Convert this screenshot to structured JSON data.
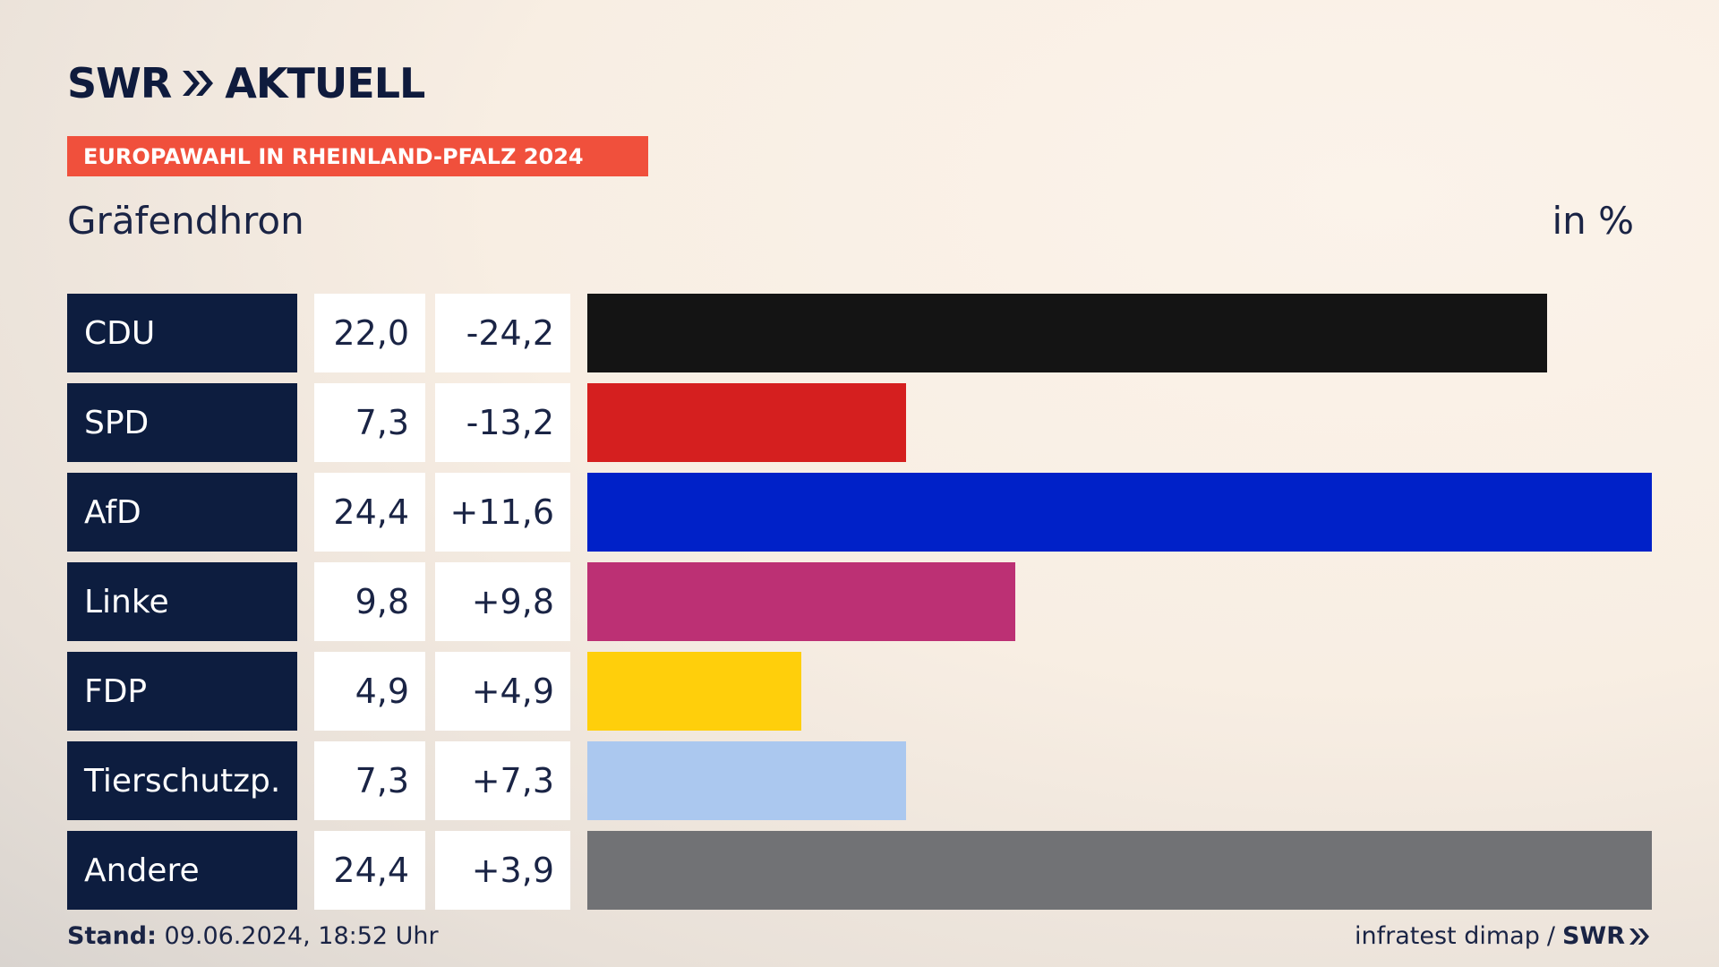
{
  "brand": {
    "logo_text_left": "SWR",
    "logo_text_right": "AKTUELL"
  },
  "tag": "EUROPAWAHL IN RHEINLAND-PFALZ 2024",
  "region": "Gräfendhron",
  "unit": "in %",
  "chart_data": {
    "type": "bar",
    "orientation": "horizontal",
    "title": "Gräfendhron",
    "unit": "in %",
    "xlim": [
      0,
      24.4
    ],
    "categories": [
      "CDU",
      "SPD",
      "AfD",
      "Linke",
      "FDP",
      "Tierschutzp.",
      "Andere"
    ],
    "values": [
      22.0,
      7.3,
      24.4,
      9.8,
      4.9,
      7.3,
      24.4
    ],
    "value_labels": [
      "22,0",
      "7,3",
      "24,4",
      "9,8",
      "4,9",
      "7,3",
      "24,4"
    ],
    "change_labels": [
      "-24,2",
      "-13,2",
      "+11,6",
      "+9,8",
      "+4,9",
      "+7,3",
      "+3,9"
    ],
    "changes": [
      -24.2,
      -13.2,
      11.6,
      9.8,
      4.9,
      7.3,
      3.9
    ],
    "colors": [
      "#141414",
      "#d51f1f",
      "#0021c8",
      "#bc3074",
      "#ffcf0b",
      "#abc8ef",
      "#717275"
    ]
  },
  "footer": {
    "stand_label": "Stand:",
    "stand_value": "09.06.2024, 18:52 Uhr",
    "source": "infratest dimap",
    "separator": "/",
    "source_logo": "SWR"
  }
}
